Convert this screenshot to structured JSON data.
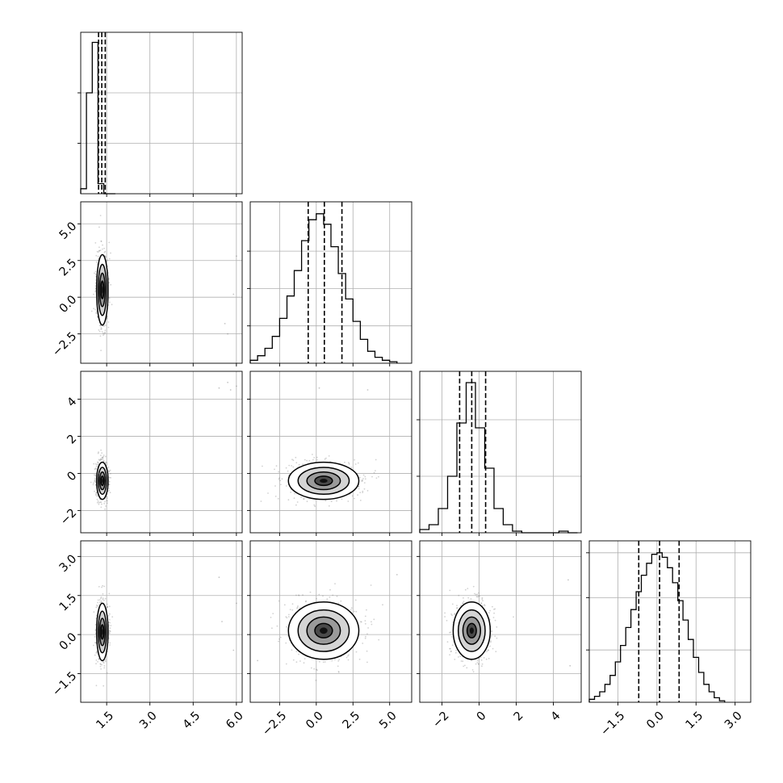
{
  "chart_data": {
    "type": "corner",
    "title": "",
    "parameters": [
      "",
      "",
      "",
      ""
    ],
    "colors": {
      "line": "#000000",
      "grid": "#b0b0b0",
      "scatter": "#7f7f7f",
      "frame": "#000000"
    },
    "grid": true,
    "dimensions": [
      {
        "range": [
          0.6,
          6.2
        ],
        "ticks": [
          1.5,
          3.0,
          4.5,
          6.0
        ],
        "tick_labels": [
          "1.5",
          "3.0",
          "4.5",
          "6.0"
        ]
      },
      {
        "range": [
          -4.5,
          6.5
        ],
        "ticks": [
          -2.5,
          0.0,
          2.5,
          5.0
        ],
        "tick_labels": [
          "−2.5",
          "0.0",
          "2.5",
          "5.0"
        ]
      },
      {
        "range": [
          -3.2,
          5.5
        ],
        "ticks": [
          -2,
          0,
          2,
          4
        ],
        "tick_labels": [
          "−2",
          "0",
          "2",
          "4"
        ]
      },
      {
        "range": [
          -2.6,
          3.6
        ],
        "ticks": [
          -1.5,
          0.0,
          1.5,
          3.0
        ],
        "tick_labels": [
          "−1.5",
          "0.0",
          "1.5",
          "3.0"
        ]
      }
    ],
    "marginals": [
      {
        "param": 0,
        "edges": [
          0.6,
          0.8,
          1.0,
          1.2,
          1.4,
          1.6,
          1.8
        ],
        "counts": [
          0.05,
          1.0,
          1.5,
          0.1,
          0.0,
          0.0
        ],
        "quantile_lines": [
          1.22,
          1.33,
          1.45
        ],
        "ymax": 1.6,
        "ticks_y": [
          0.5,
          1.0
        ]
      },
      {
        "param": 1,
        "edges": [
          -4.5,
          -4.0,
          -3.5,
          -3.0,
          -2.5,
          -2.0,
          -1.5,
          -1.0,
          -0.5,
          0.0,
          0.5,
          1.0,
          1.5,
          2.0,
          2.5,
          3.0,
          3.5,
          4.0,
          4.5,
          5.0,
          5.5
        ],
        "counts": [
          0.02,
          0.05,
          0.1,
          0.18,
          0.3,
          0.45,
          0.62,
          0.82,
          0.96,
          1.0,
          0.93,
          0.78,
          0.6,
          0.43,
          0.28,
          0.16,
          0.08,
          0.04,
          0.02,
          0.01
        ],
        "quantile_lines": [
          -0.55,
          0.55,
          1.75
        ],
        "ymax": 1.08,
        "ticks_y": [
          0.25,
          0.5,
          0.75
        ]
      },
      {
        "param": 2,
        "edges": [
          -3.2,
          -2.7,
          -2.2,
          -1.7,
          -1.2,
          -0.7,
          -0.2,
          0.3,
          0.8,
          1.3,
          1.8,
          2.3,
          2.8,
          3.3,
          3.8,
          4.3,
          4.8,
          5.3
        ],
        "counts": [
          0.02,
          0.05,
          0.15,
          0.35,
          0.68,
          0.93,
          0.65,
          0.4,
          0.15,
          0.05,
          0.01,
          0.0,
          0.0,
          0.0,
          0.0,
          0.01,
          0.0
        ],
        "quantile_lines": [
          -1.05,
          -0.4,
          0.35
        ],
        "ymax": 1.0,
        "ticks_y": [
          0.35,
          0.7
        ]
      },
      {
        "param": 3,
        "edges": [
          -2.6,
          -2.4,
          -2.2,
          -2.0,
          -1.8,
          -1.6,
          -1.4,
          -1.2,
          -1.0,
          -0.8,
          -0.6,
          -0.4,
          -0.2,
          0.0,
          0.2,
          0.4,
          0.6,
          0.8,
          1.0,
          1.2,
          1.4,
          1.6,
          1.8,
          2.0,
          2.2,
          2.4,
          2.6
        ],
        "counts": [
          0.02,
          0.04,
          0.07,
          0.12,
          0.18,
          0.27,
          0.38,
          0.5,
          0.62,
          0.74,
          0.85,
          0.93,
          0.99,
          1.0,
          0.97,
          0.9,
          0.8,
          0.68,
          0.55,
          0.42,
          0.3,
          0.2,
          0.12,
          0.07,
          0.03,
          0.01
        ],
        "quantile_lines": [
          -0.7,
          0.1,
          0.85
        ],
        "ymax": 1.08,
        "ticks_y": [
          0.35,
          0.7,
          1.0
        ]
      }
    ],
    "joints": [
      {
        "x_param": 0,
        "y_param": 1,
        "center": [
          1.35,
          0.5
        ],
        "sd": [
          0.1,
          1.2
        ],
        "outliers": [
          [
            5.6,
            -1.8
          ],
          [
            5.9,
            0.2
          ],
          [
            6.0,
            2.8
          ],
          [
            5.7,
            -2.5
          ]
        ]
      },
      {
        "x_param": 0,
        "y_param": 2,
        "center": [
          1.35,
          -0.4
        ],
        "sd": [
          0.1,
          0.5
        ],
        "outliers": [
          [
            5.4,
            4.6
          ],
          [
            5.8,
            4.5
          ],
          [
            6.0,
            4.7
          ],
          [
            5.7,
            4.9
          ]
        ]
      },
      {
        "x_param": 1,
        "y_param": 2,
        "center": [
          0.5,
          -0.4
        ],
        "sd": [
          1.2,
          0.5
        ],
        "outliers": [
          [
            0.2,
            4.6
          ],
          [
            3.5,
            4.5
          ]
        ]
      },
      {
        "x_param": 0,
        "y_param": 3,
        "center": [
          1.35,
          0.1
        ],
        "sd": [
          0.1,
          0.55
        ],
        "outliers": [
          [
            5.5,
            0.5
          ],
          [
            5.9,
            -0.6
          ],
          [
            6.0,
            1.2
          ],
          [
            5.4,
            2.2
          ]
        ]
      },
      {
        "x_param": 1,
        "y_param": 3,
        "center": [
          0.5,
          0.15
        ],
        "sd": [
          1.2,
          0.55
        ],
        "outliers": [
          [
            5.5,
            2.3
          ],
          [
            -4.0,
            -1.0
          ]
        ]
      },
      {
        "x_param": 2,
        "y_param": 3,
        "center": [
          -0.4,
          0.15
        ],
        "sd": [
          0.5,
          0.55
        ],
        "outliers": [
          [
            4.8,
            2.1
          ],
          [
            4.9,
            -1.2
          ]
        ]
      }
    ]
  }
}
